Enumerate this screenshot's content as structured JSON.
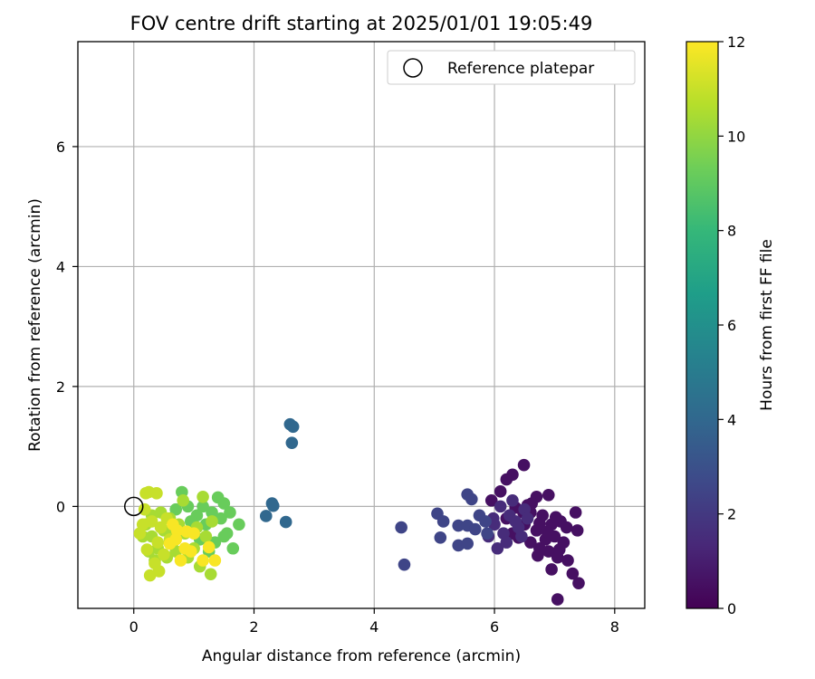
{
  "chart_data": {
    "type": "scatter",
    "title": "FOV centre drift starting at 2025/01/01 19:05:49",
    "xlabel": "Angular distance from reference (arcmin)",
    "ylabel": "Rotation from reference (arcmin)",
    "xlim": [
      -0.93,
      8.5
    ],
    "ylim": [
      -1.7,
      7.75
    ],
    "xticks": [
      0,
      2,
      4,
      6,
      8
    ],
    "yticks": [
      0,
      2,
      4,
      6
    ],
    "grid": true,
    "legend": {
      "position": "top-right",
      "entries": [
        "Reference platepar"
      ]
    },
    "reference_point": {
      "name": "Reference platepar",
      "x": 0,
      "y": 0
    },
    "colorbar": {
      "label": "Hours from first FF file",
      "colormap": "viridis",
      "range": [
        0,
        12
      ],
      "ticks": [
        0,
        2,
        4,
        6,
        8,
        10,
        12
      ]
    },
    "colormap_stops": [
      "#440154",
      "#482878",
      "#3e4989",
      "#31688e",
      "#26828e",
      "#1f9e89",
      "#35b779",
      "#6ece58",
      "#b5de2b",
      "#fde725"
    ],
    "clusters": [
      {
        "hours": 0.5,
        "points": [
          [
            6.49,
            0.69
          ],
          [
            6.3,
            0.53
          ],
          [
            6.2,
            0.45
          ],
          [
            6.9,
            0.19
          ],
          [
            6.7,
            0.16
          ],
          [
            6.1,
            0.25
          ],
          [
            5.95,
            0.1
          ],
          [
            6.35,
            -0.02
          ],
          [
            6.6,
            -0.1
          ],
          [
            6.8,
            -0.15
          ],
          [
            7.1,
            -0.25
          ],
          [
            7.35,
            -0.1
          ],
          [
            7.2,
            -0.35
          ],
          [
            7.38,
            -0.4
          ],
          [
            7.0,
            -0.5
          ],
          [
            6.75,
            -0.7
          ],
          [
            6.9,
            -0.75
          ],
          [
            7.05,
            -0.85
          ],
          [
            7.22,
            -0.9
          ],
          [
            6.95,
            -1.05
          ],
          [
            7.3,
            -1.12
          ],
          [
            7.4,
            -1.28
          ],
          [
            7.05,
            -1.55
          ],
          [
            6.5,
            -0.3
          ],
          [
            6.7,
            -0.4
          ],
          [
            6.85,
            -0.55
          ],
          [
            7.08,
            -0.72
          ],
          [
            6.6,
            -0.6
          ],
          [
            6.3,
            -0.45
          ],
          [
            6.48,
            -0.1
          ],
          [
            6.62,
            0.05
          ],
          [
            6.75,
            -0.28
          ],
          [
            6.95,
            -0.3
          ],
          [
            7.15,
            -0.6
          ],
          [
            6.4,
            -0.52
          ],
          [
            6.2,
            -0.2
          ],
          [
            6.55,
            0.02
          ],
          [
            6.88,
            -0.42
          ],
          [
            7.02,
            -0.18
          ],
          [
            6.72,
            -0.82
          ]
        ]
      },
      {
        "hours": 1.5,
        "points": [
          [
            6.1,
            0.0
          ],
          [
            6.25,
            -0.15
          ],
          [
            6.0,
            -0.3
          ],
          [
            6.15,
            -0.45
          ],
          [
            5.9,
            -0.5
          ],
          [
            6.05,
            -0.7
          ],
          [
            6.4,
            -0.35
          ],
          [
            6.3,
            0.1
          ],
          [
            6.45,
            -0.5
          ],
          [
            5.98,
            -0.2
          ],
          [
            6.35,
            -0.25
          ],
          [
            6.2,
            -0.6
          ],
          [
            6.5,
            -0.05
          ],
          [
            6.55,
            -0.2
          ]
        ]
      },
      {
        "hours": 2.5,
        "points": [
          [
            5.55,
            0.2
          ],
          [
            5.62,
            0.12
          ],
          [
            5.05,
            -0.12
          ],
          [
            5.15,
            -0.25
          ],
          [
            5.4,
            -0.32
          ],
          [
            5.55,
            -0.32
          ],
          [
            5.75,
            -0.15
          ],
          [
            5.85,
            -0.25
          ],
          [
            5.4,
            -0.65
          ],
          [
            5.1,
            -0.52
          ],
          [
            5.55,
            -0.62
          ],
          [
            5.88,
            -0.45
          ],
          [
            4.45,
            -0.35
          ],
          [
            4.5,
            -0.97
          ],
          [
            5.68,
            -0.38
          ]
        ]
      },
      {
        "hours": 4.0,
        "points": [
          [
            2.6,
            1.37
          ],
          [
            2.65,
            1.33
          ],
          [
            2.63,
            1.06
          ],
          [
            2.3,
            0.05
          ],
          [
            2.32,
            0.01
          ],
          [
            2.2,
            -0.16
          ],
          [
            2.53,
            -0.26
          ]
        ]
      },
      {
        "hours": 9.2,
        "points": [
          [
            1.4,
            0.15
          ],
          [
            1.6,
            -0.1
          ],
          [
            1.75,
            -0.3
          ],
          [
            1.5,
            -0.5
          ],
          [
            1.65,
            -0.7
          ],
          [
            1.2,
            -0.3
          ],
          [
            1.3,
            -0.1
          ],
          [
            0.8,
            0.24
          ],
          [
            0.9,
            0.0
          ],
          [
            1.0,
            -0.35
          ],
          [
            1.1,
            -0.55
          ],
          [
            1.25,
            -0.75
          ],
          [
            1.45,
            -0.2
          ],
          [
            1.55,
            -0.45
          ],
          [
            1.05,
            -0.15
          ],
          [
            0.7,
            -0.05
          ],
          [
            1.35,
            -0.6
          ],
          [
            1.15,
            0.0
          ],
          [
            0.95,
            -0.25
          ],
          [
            1.5,
            0.05
          ]
        ]
      },
      {
        "hours": 10.4,
        "points": [
          [
            1.15,
            0.16
          ],
          [
            0.82,
            0.1
          ],
          [
            0.6,
            -0.2
          ],
          [
            0.5,
            -0.4
          ],
          [
            0.3,
            -0.5
          ],
          [
            0.2,
            -0.3
          ],
          [
            0.4,
            -0.7
          ],
          [
            0.65,
            -0.6
          ],
          [
            1.1,
            -1.0
          ],
          [
            1.28,
            -1.13
          ],
          [
            0.85,
            -0.45
          ],
          [
            0.75,
            -0.3
          ],
          [
            0.45,
            -0.1
          ],
          [
            1.2,
            -0.5
          ],
          [
            0.55,
            -0.85
          ],
          [
            1.0,
            -0.7
          ],
          [
            0.35,
            -0.9
          ],
          [
            0.6,
            -0.45
          ],
          [
            0.9,
            -0.85
          ],
          [
            1.3,
            -0.25
          ],
          [
            0.3,
            -0.15
          ],
          [
            0.7,
            -0.75
          ],
          [
            0.15,
            -0.5
          ],
          [
            1.05,
            -0.35
          ],
          [
            0.25,
            -0.75
          ]
        ]
      },
      {
        "hours": 11.0,
        "points": [
          [
            0.2,
            0.22
          ],
          [
            0.25,
            0.24
          ],
          [
            0.38,
            0.22
          ],
          [
            0.18,
            -0.05
          ],
          [
            0.3,
            -0.25
          ],
          [
            0.1,
            -0.45
          ],
          [
            0.22,
            -0.72
          ],
          [
            0.45,
            -0.35
          ],
          [
            0.4,
            -0.6
          ],
          [
            0.5,
            -0.8
          ],
          [
            0.35,
            -0.95
          ],
          [
            0.42,
            -1.08
          ],
          [
            0.27,
            -1.15
          ],
          [
            0.55,
            -0.2
          ],
          [
            0.6,
            -0.55
          ],
          [
            0.15,
            -0.3
          ]
        ]
      },
      {
        "hours": 11.9,
        "points": [
          [
            0.65,
            -0.3
          ],
          [
            0.72,
            -0.4
          ],
          [
            0.88,
            -0.42
          ],
          [
            1.0,
            -0.45
          ],
          [
            0.85,
            -0.7
          ],
          [
            0.95,
            -0.75
          ],
          [
            0.7,
            -0.55
          ],
          [
            1.25,
            -0.68
          ],
          [
            1.35,
            -0.9
          ],
          [
            0.78,
            -0.9
          ],
          [
            1.15,
            -0.9
          ],
          [
            0.6,
            -0.62
          ]
        ]
      }
    ]
  }
}
